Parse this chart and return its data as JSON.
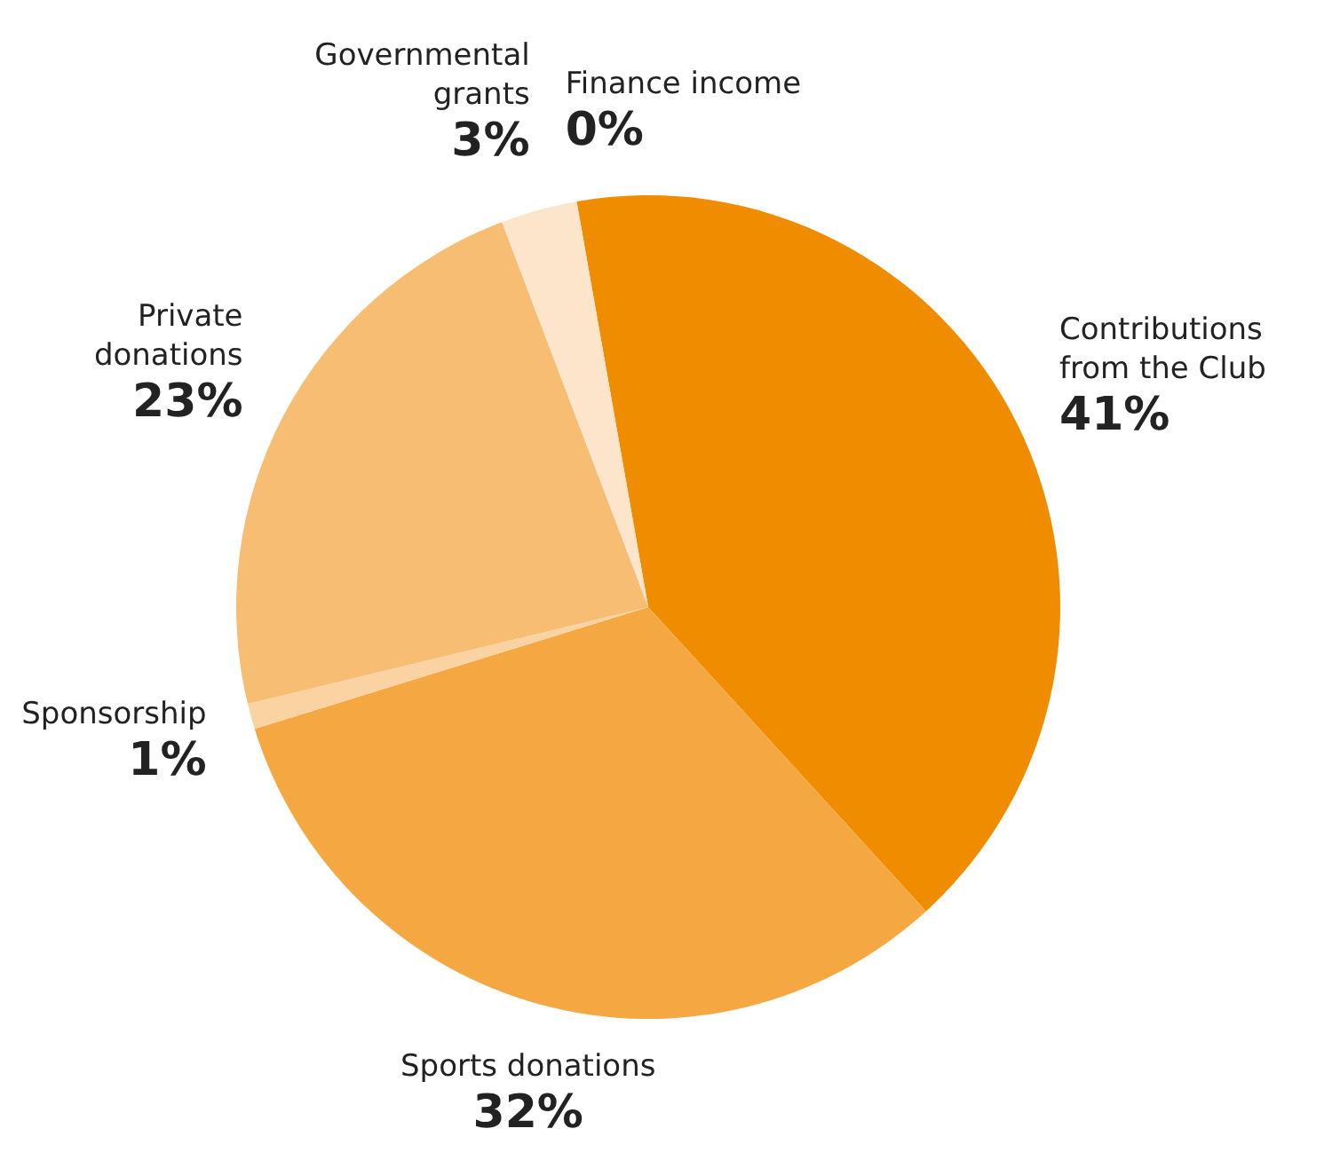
{
  "chart_data": {
    "type": "pie",
    "categories": [
      "Contributions from the Club",
      "Sports donations",
      "Sponsorship",
      "Private donations",
      "Governmental grants",
      "Finance income"
    ],
    "values": [
      41,
      32,
      1,
      23,
      3,
      0
    ],
    "colors": [
      "#f08c00",
      "#f5a742",
      "#fbd3a3",
      "#f7bd72",
      "#fde5cc",
      "#000000"
    ],
    "value_labels": [
      "41%",
      "32%",
      "1%",
      "23%",
      "3%",
      "0%"
    ]
  }
}
